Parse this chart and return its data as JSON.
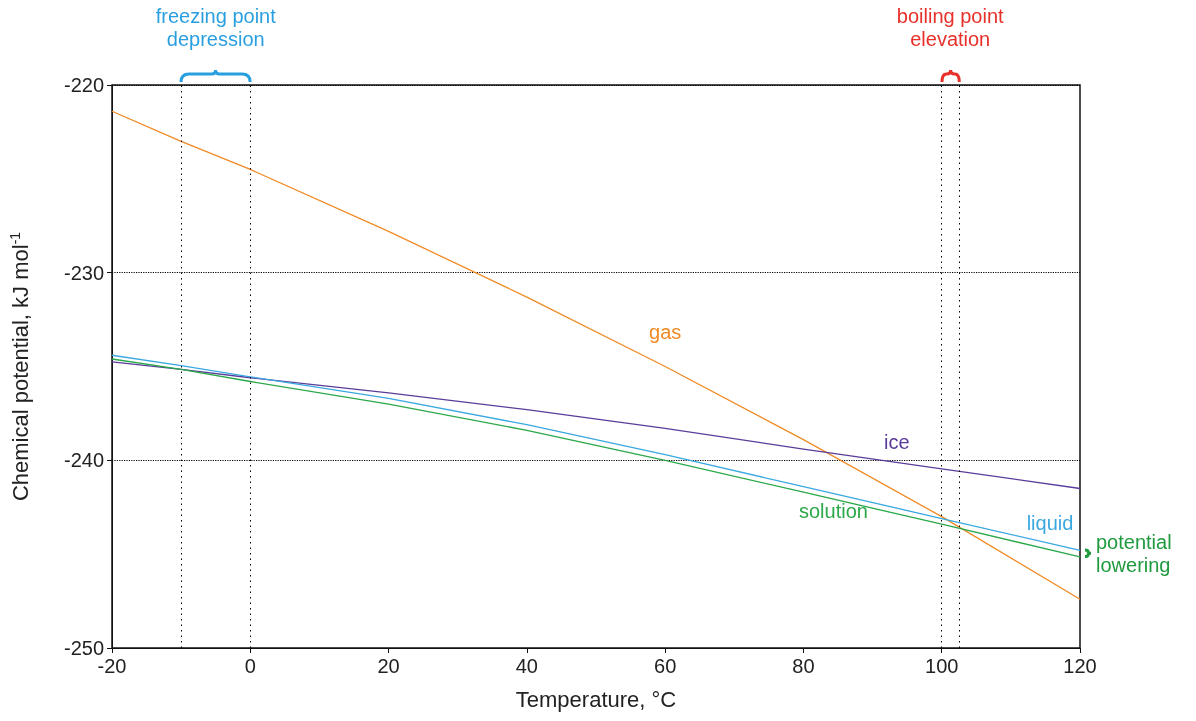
{
  "chart_data": {
    "type": "line",
    "xlabel": "Temperature, °C",
    "ylabel": "Chemical potential, kJ mol$^{-1}$",
    "x": [
      -20,
      -10,
      0,
      20,
      40,
      60,
      80,
      100,
      120
    ],
    "series": [
      {
        "name": "gas",
        "color": "#f08a24",
        "values": [
          -221.4,
          -223.0,
          -224.5,
          -227.8,
          -231.3,
          -235.0,
          -238.9,
          -243.0,
          -247.4
        ]
      },
      {
        "name": "ice",
        "color": "#5a3c9a",
        "values": [
          -234.75,
          -235.15,
          -235.6,
          -236.4,
          -237.3,
          -238.3,
          -239.4,
          -240.45,
          -241.5
        ]
      },
      {
        "name": "liquid",
        "color": "#3aa8e0",
        "values": [
          -234.4,
          -234.95,
          -235.55,
          -236.7,
          -238.1,
          -239.7,
          -241.4,
          -243.1,
          -244.8
        ]
      },
      {
        "name": "solution",
        "color": "#2aa84a",
        "values": [
          -234.6,
          -235.15,
          -235.8,
          -237.0,
          -238.4,
          -240.0,
          -241.7,
          -243.4,
          -245.15
        ]
      }
    ],
    "xlim": [
      -20,
      120
    ],
    "xticks": [
      -20,
      0,
      20,
      40,
      60,
      80,
      100,
      120
    ],
    "ylim": [
      -250,
      -220
    ],
    "yticks": [
      -250,
      -240,
      -230,
      -220
    ],
    "grid": "y",
    "legend": false,
    "marker": "none",
    "line_style": "solid",
    "ref_lines": [
      {
        "axis": "x",
        "value": -10,
        "label": null,
        "line_style": "dotted"
      },
      {
        "axis": "x",
        "value": 0,
        "label": null,
        "line_style": "dotted"
      },
      {
        "axis": "x",
        "value": 100,
        "label": null,
        "line_style": "dotted"
      },
      {
        "axis": "x",
        "value": 102.5,
        "label": null,
        "line_style": "dotted"
      }
    ],
    "annotations": [
      "freezing point depression",
      "boiling point elevation",
      "potential lowering"
    ]
  }
}
